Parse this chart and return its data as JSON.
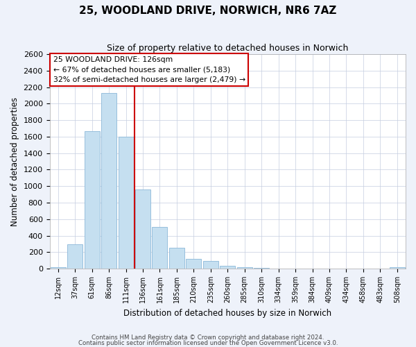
{
  "title": "25, WOODLAND DRIVE, NORWICH, NR6 7AZ",
  "subtitle": "Size of property relative to detached houses in Norwich",
  "xlabel": "Distribution of detached houses by size in Norwich",
  "ylabel": "Number of detached properties",
  "bar_color": "#c5dff0",
  "bar_edge_color": "#8bb8d8",
  "categories": [
    "12sqm",
    "37sqm",
    "61sqm",
    "86sqm",
    "111sqm",
    "136sqm",
    "161sqm",
    "185sqm",
    "210sqm",
    "235sqm",
    "260sqm",
    "285sqm",
    "310sqm",
    "334sqm",
    "359sqm",
    "384sqm",
    "409sqm",
    "434sqm",
    "458sqm",
    "483sqm",
    "508sqm"
  ],
  "values": [
    20,
    295,
    1670,
    2130,
    1600,
    960,
    505,
    250,
    120,
    95,
    32,
    15,
    5,
    3,
    3,
    2,
    1,
    1,
    0,
    0,
    15
  ],
  "vline_x": 5.0,
  "vline_color": "#cc0000",
  "annotation_line1": "25 WOODLAND DRIVE: 126sqm",
  "annotation_line2": "← 67% of detached houses are smaller (5,183)",
  "annotation_line3": "32% of semi-detached houses are larger (2,479) →",
  "ylim": [
    0,
    2600
  ],
  "yticks": [
    0,
    200,
    400,
    600,
    800,
    1000,
    1200,
    1400,
    1600,
    1800,
    2000,
    2200,
    2400,
    2600
  ],
  "footer1": "Contains HM Land Registry data © Crown copyright and database right 2024.",
  "footer2": "Contains public sector information licensed under the Open Government Licence v3.0.",
  "bg_color": "#eef2fa",
  "plot_bg_color": "#ffffff",
  "grid_color": "#c5cee0"
}
